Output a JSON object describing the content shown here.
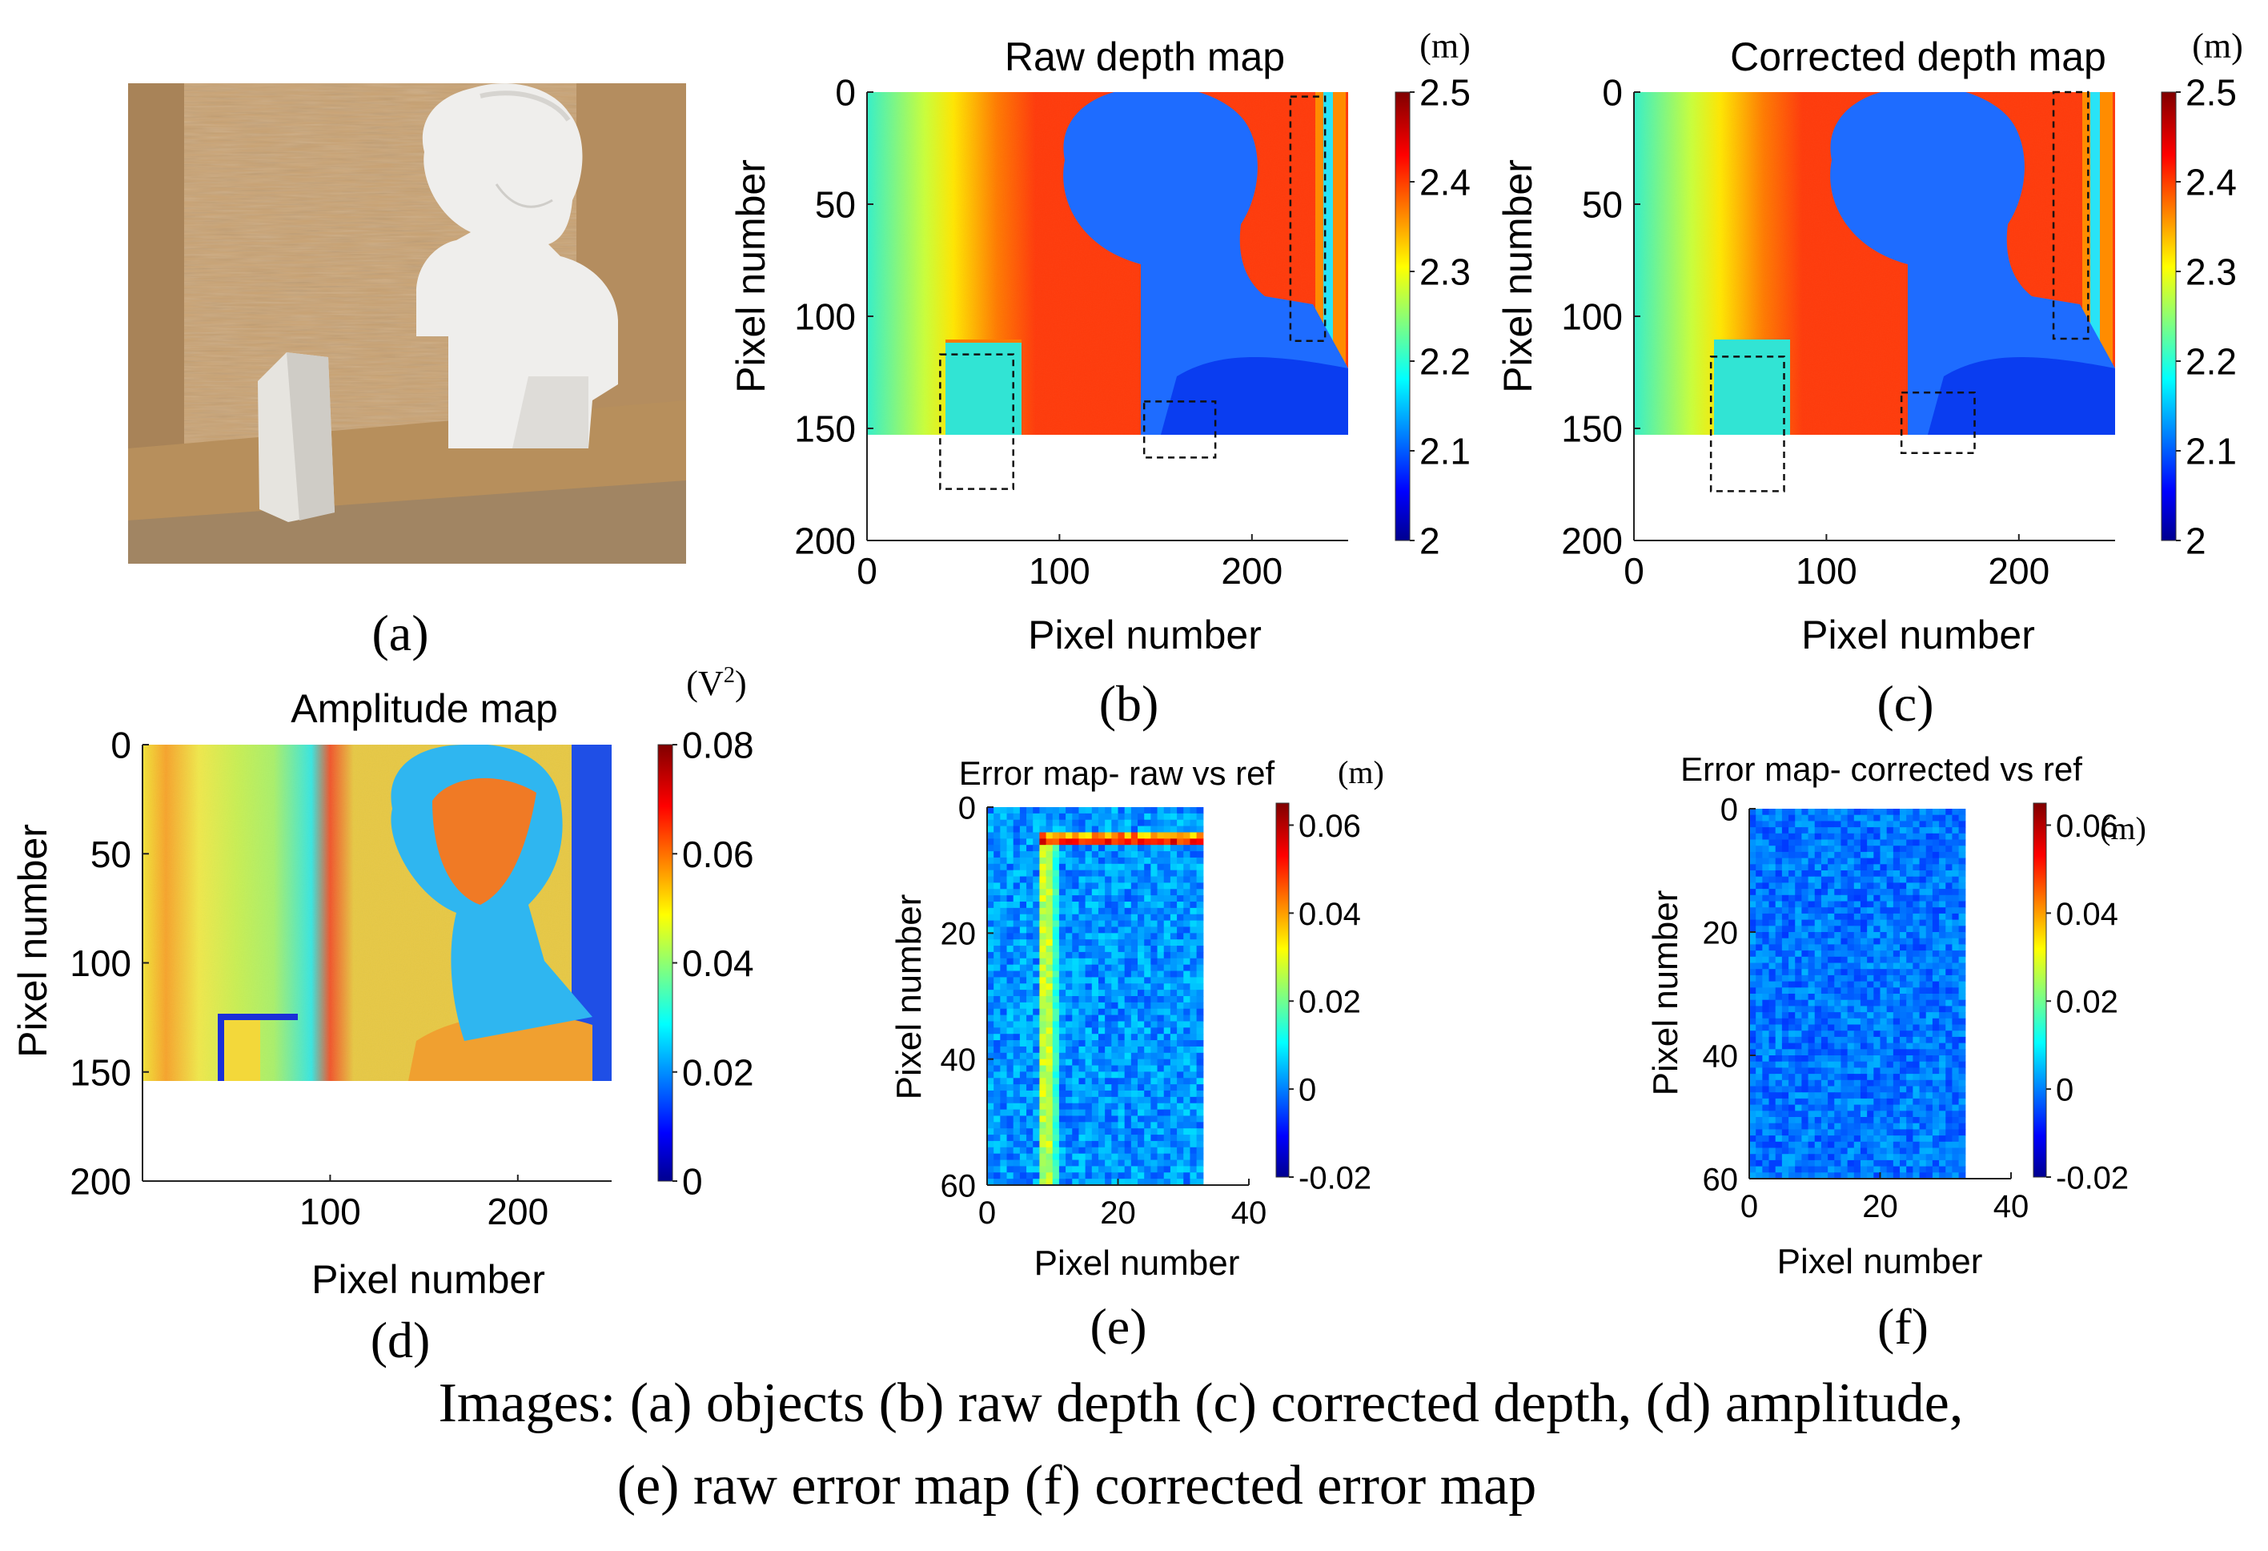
{
  "panel_labels": [
    "(a)",
    "(b)",
    "(c)",
    "(d)",
    "(e)",
    "(f)"
  ],
  "caption": {
    "line1": "Images: (a) objects (b) raw depth (c) corrected depth, (d) amplitude,",
    "line2": "(e) raw error map (f) corrected error map"
  },
  "photo": {
    "description_icon": "photo-bust-and-prism-icon",
    "colors": {
      "wood": "#c9a272",
      "plaster": "#efeeec",
      "floor": "#b78f5c"
    }
  },
  "chart_data": [
    {
      "id": "raw-depth",
      "type": "heatmap",
      "title": "Raw depth map",
      "xlabel": "Pixel number",
      "ylabel": "Pixel number",
      "xlim": [
        0,
        250
      ],
      "ylim": [
        200,
        0
      ],
      "x_ticks": [
        0,
        100,
        200
      ],
      "y_ticks": [
        0,
        50,
        100,
        150,
        200
      ],
      "colorbar": {
        "range": [
          2,
          2.5
        ],
        "ticks": [
          2,
          2.1,
          2.2,
          2.3,
          2.4,
          2.5
        ],
        "tick_labels": [
          "2",
          "2.1",
          "2.2",
          "2.3",
          "2.4",
          "2.5"
        ],
        "unit": "(m)"
      },
      "dashed_boxes": [
        {
          "x": [
            38,
            76
          ],
          "y": [
            117,
            177
          ]
        },
        {
          "x": [
            144,
            181
          ],
          "y": [
            138,
            163
          ]
        },
        {
          "x": [
            220,
            238
          ],
          "y": [
            2,
            111
          ]
        }
      ],
      "image_extent": {
        "x": [
          0,
          250
        ],
        "y": [
          0,
          178
        ]
      }
    },
    {
      "id": "corrected-depth",
      "type": "heatmap",
      "title": "Corrected depth map",
      "xlabel": "Pixel number",
      "ylabel": "Pixel number",
      "xlim": [
        0,
        250
      ],
      "ylim": [
        200,
        0
      ],
      "x_ticks": [
        0,
        100,
        200
      ],
      "y_ticks": [
        0,
        50,
        100,
        150,
        200
      ],
      "colorbar": {
        "range": [
          2,
          2.5
        ],
        "ticks": [
          2,
          2.1,
          2.2,
          2.3,
          2.4,
          2.5
        ],
        "tick_labels": [
          "2",
          "2.1",
          "2.2",
          "2.3",
          "2.4",
          "2.5"
        ],
        "unit": "(m)"
      },
      "dashed_boxes": [
        {
          "x": [
            40,
            78
          ],
          "y": [
            118,
            178
          ]
        },
        {
          "x": [
            139,
            177
          ],
          "y": [
            134,
            161
          ]
        },
        {
          "x": [
            218,
            236
          ],
          "y": [
            0,
            110
          ]
        }
      ],
      "image_extent": {
        "x": [
          0,
          250
        ],
        "y": [
          0,
          178
        ]
      }
    },
    {
      "id": "amplitude",
      "type": "heatmap",
      "title": "Amplitude map",
      "xlabel": "Pixel number",
      "ylabel": "Pixel number",
      "xlim": [
        0,
        250
      ],
      "ylim": [
        200,
        0
      ],
      "x_ticks": [
        100,
        200
      ],
      "y_ticks": [
        0,
        50,
        100,
        150,
        200
      ],
      "colorbar": {
        "range": [
          0,
          0.08
        ],
        "ticks": [
          0,
          0.02,
          0.04,
          0.06,
          0.08
        ],
        "tick_labels": [
          "0",
          "0.02",
          "0.04",
          "0.06",
          "0.08"
        ],
        "unit": "(V",
        "unit_sup": "2",
        "unit_end": ")"
      },
      "image_extent": {
        "x": [
          0,
          250
        ],
        "y": [
          0,
          178
        ]
      }
    },
    {
      "id": "error-raw",
      "type": "heatmap",
      "title": "Error map- raw vs ref",
      "xlabel": "Pixel number",
      "ylabel": "Pixel number",
      "xlim": [
        0,
        40
      ],
      "ylim": [
        60,
        0
      ],
      "x_ticks": [
        0,
        20,
        40
      ],
      "y_ticks": [
        0,
        20,
        40,
        60
      ],
      "colorbar": {
        "range": [
          -0.02,
          0.065
        ],
        "ticks": [
          -0.02,
          0,
          0.02,
          0.04,
          0.06
        ],
        "tick_labels": [
          "-0.02",
          "0",
          "0.02",
          "0.04",
          "0.06"
        ],
        "unit": "(m)"
      },
      "image_extent": {
        "x": [
          0,
          33
        ],
        "y": [
          0,
          60
        ]
      },
      "grid_cells": [
        33,
        60
      ]
    },
    {
      "id": "error-corrected",
      "type": "heatmap",
      "title": "Error map- corrected vs ref",
      "xlabel": "Pixel number",
      "ylabel": "Pixel number",
      "xlim": [
        0,
        40
      ],
      "ylim": [
        60,
        0
      ],
      "x_ticks": [
        0,
        20,
        40
      ],
      "y_ticks": [
        0,
        20,
        40,
        60
      ],
      "colorbar": {
        "range": [
          -0.02,
          0.065
        ],
        "ticks": [
          -0.02,
          0,
          0.02,
          0.04,
          0.06
        ],
        "tick_labels": [
          "-0.02",
          "0",
          "0.02",
          "0.04",
          "0.06"
        ],
        "unit": "(m)"
      },
      "image_extent": {
        "x": [
          0,
          33
        ],
        "y": [
          0,
          60
        ]
      },
      "grid_cells": [
        33,
        60
      ]
    }
  ]
}
